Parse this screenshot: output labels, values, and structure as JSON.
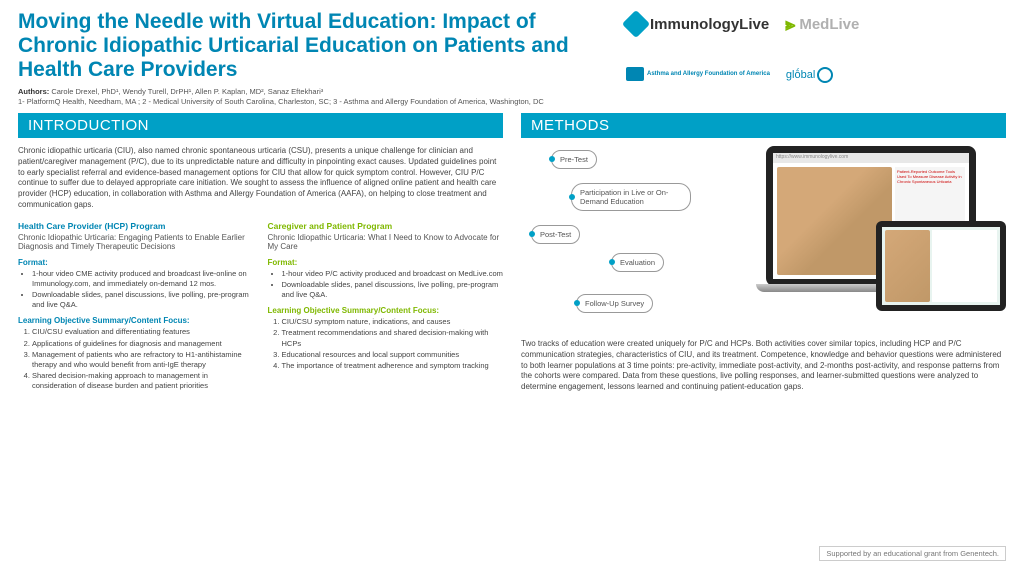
{
  "title": "Moving the Needle with Virtual Education: Impact of Chronic Idiopathic Urticarial Education on Patients and Health Care Providers",
  "authors_label": "Authors:",
  "authors": "Carole Drexel, PhD¹, Wendy Turell, DrPH¹, Allen P. Kaplan, MD², Sanaz Eftekhari³",
  "affiliations": "1- PlatformQ Health, Needham, MA ; 2 - Medical University of South Carolina, Charleston, SC; 3 - Asthma and Allergy Foundation of America, Washington, DC",
  "logos": {
    "immunology": "ImmunologyLive",
    "medlive": "MedLive",
    "aafa": "Asthma and Allergy Foundation of America",
    "global": "glṓbal"
  },
  "intro": {
    "heading": "INTRODUCTION",
    "text": "Chronic idiopathic urticaria (CIU), also named chronic spontaneous urticaria (CSU), presents a unique challenge for clinician and patient/caregiver management (P/C), due to its unpredictable nature and difficulty in pinpointing exact causes. Updated guidelines point to early specialist referral and evidence-based management options for CIU that allow for quick symptom control. However, CIU P/C continue to suffer due to delayed appropriate care initiation. We sought to assess the influence of aligned online patient and health care provider (HCP) education, in collaboration with Asthma and Allergy Foundation of America (AAFA), on helping to close treatment and communication gaps."
  },
  "hcp": {
    "title": "Health Care Provider (HCP) Program",
    "subtitle": "Chronic Idiopathic Urticaria: Engaging Patients to Enable Earlier Diagnosis and Timely Therapeutic Decisions",
    "format_label": "Format:",
    "format": [
      "1-hour video CME activity produced and broadcast live-online on Immunology.com, and immediately on-demand 12 mos.",
      "Downloadable slides, panel discussions, live polling, pre-program and live Q&A."
    ],
    "obj_label": "Learning Objective Summary/Content Focus:",
    "objectives": [
      "CIU/CSU evaluation and differentiating features",
      "Applications of guidelines for diagnosis and management",
      "Management of patients who are refractory to H1-antihistamine therapy and who would benefit from anti-IgE therapy",
      "Shared decision-making approach to management in consideration of disease burden and patient priorities"
    ]
  },
  "patient": {
    "title": "Caregiver and Patient Program",
    "subtitle": "Chronic Idiopathic Urticaria: What I Need to Know to Advocate for My Care",
    "format_label": "Format:",
    "format": [
      "1-hour video P/C activity produced and broadcast on MedLive.com",
      "Downloadable slides, panel discussions, live polling, pre-program and live Q&A."
    ],
    "obj_label": "Learning Objective Summary/Content Focus:",
    "objectives": [
      "CIU/CSU symptom nature, indications, and causes",
      "Treatment recommendations and shared decision-making with HCPs",
      "Educational resources and local support communities",
      "The importance of treatment adherence and symptom tracking"
    ]
  },
  "methods": {
    "heading": "METHODS",
    "flow": [
      "Pre-Test",
      "Participation in Live or On-Demand Education",
      "Post-Test",
      "Evaluation",
      "Follow-Up Survey"
    ],
    "screen_url": "https://www.immunologylive.com",
    "screen_title": "Patient-Reported Outcome Tools Used To Measure Disease Activity in Chronic Spontaneous Urticaria",
    "text": "Two tracks of education were created uniquely for P/C and HCPs. Both activities cover similar topics, including HCP and P/C communication strategies, characteristics of CIU, and its treatment. Competence, knowledge and behavior questions were administered to both learner populations at 3 time points: pre-activity, immediate post-activity, and 2-months post-activity, and response patterns from the cohorts were compared. Data from these questions, live polling responses, and learner-submitted questions were analyzed to determine engagement, lessons learned and continuing patient-education gaps."
  },
  "grant": "Supported by an educational grant from Genentech.",
  "colors": {
    "primary": "#00a0c6",
    "hcp": "#0086b3",
    "patient": "#7fb800"
  }
}
